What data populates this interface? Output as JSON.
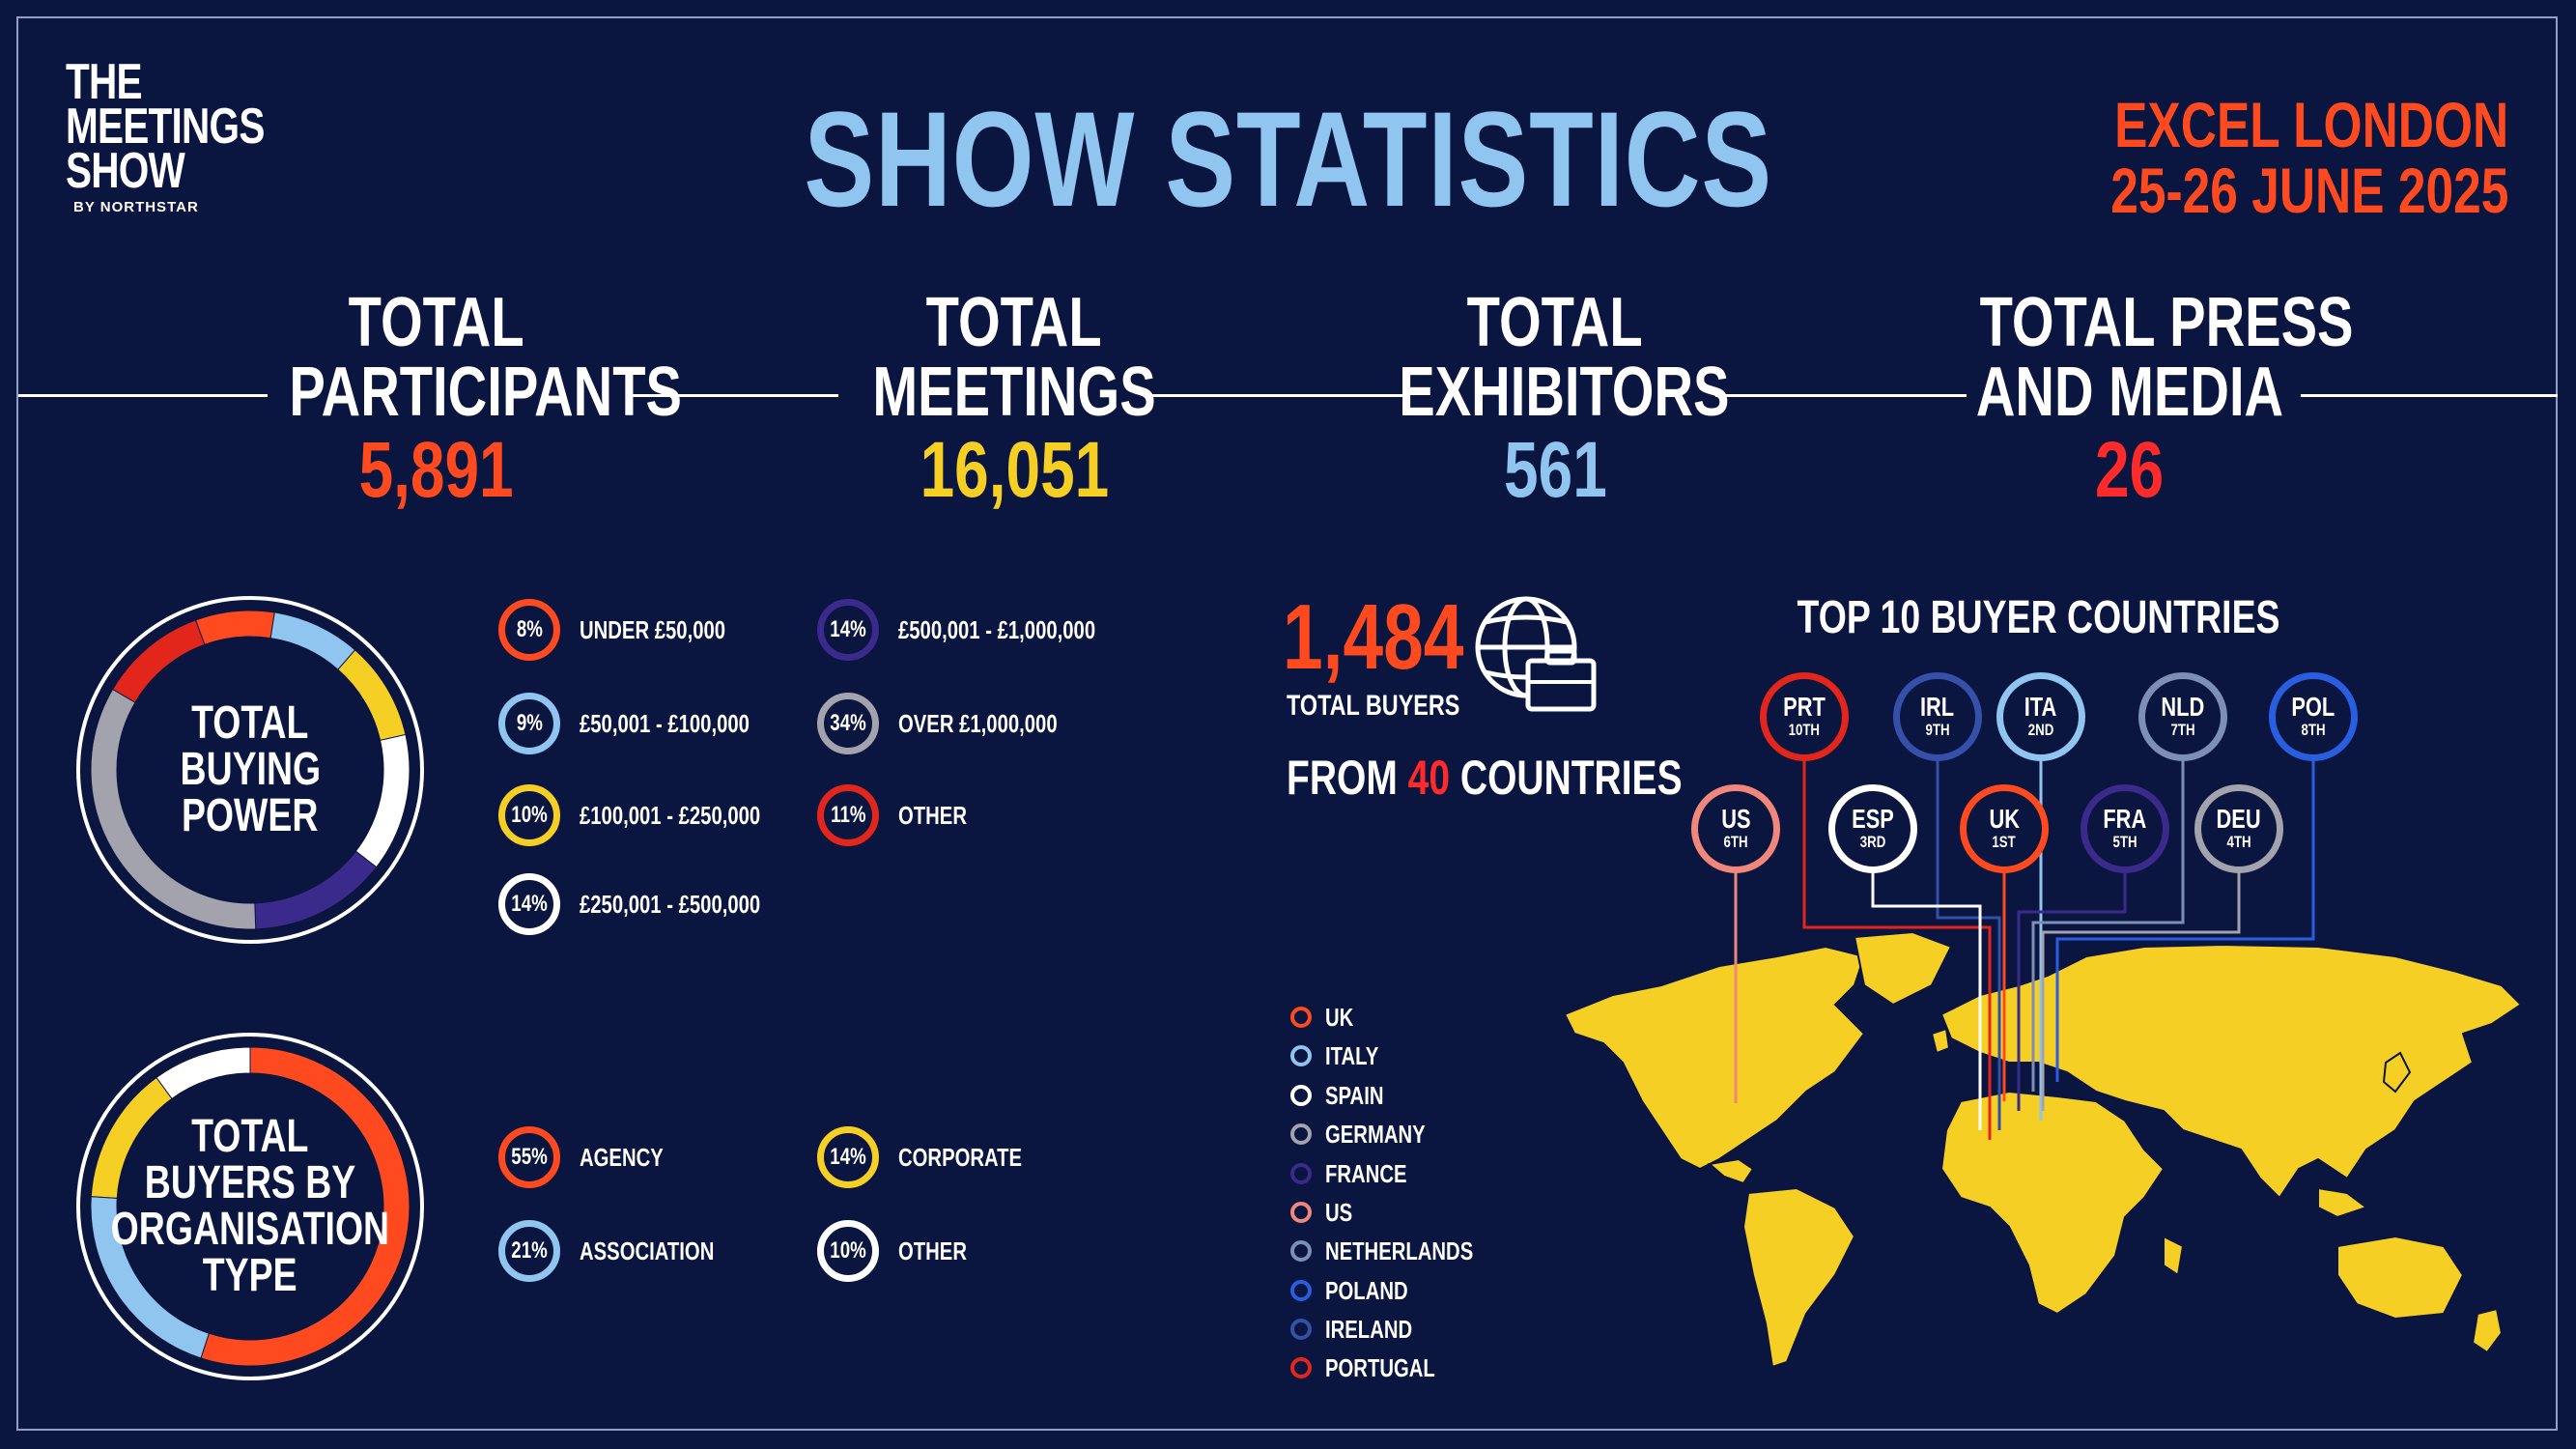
{
  "logo": {
    "line1": "THE",
    "line2": "MEETINGS",
    "line3": "SHOW",
    "byline": "BY NORTHSTAR"
  },
  "title": "SHOW STATISTICS",
  "venue": {
    "line1": "EXCEL LONDON",
    "line2": "25-26 JUNE 2025"
  },
  "stats": [
    {
      "label1": "TOTAL",
      "label2": "PARTICIPANTS",
      "value": "5,891",
      "color": "#ff4a1f"
    },
    {
      "label1": "TOTAL",
      "label2": "MEETINGS",
      "value": "16,051",
      "color": "#f6cf25"
    },
    {
      "label1": "TOTAL",
      "label2": "EXHIBITORS",
      "value": "561",
      "color": "#8fc5ef"
    },
    {
      "label1": "TOTAL PRESS",
      "label2": "AND MEDIA",
      "value": "26",
      "color": "#ff2a2a"
    }
  ],
  "chart_data": [
    {
      "type": "pie",
      "title": "TOTAL BUYING POWER",
      "title_lines": [
        "TOTAL",
        "BUYING",
        "POWER"
      ],
      "slices": [
        {
          "label": "UNDER £50,000",
          "value": 8,
          "display": "8%",
          "color": "#ff4a1f"
        },
        {
          "label": "£50,001 - £100,000",
          "value": 9,
          "display": "9%",
          "color": "#8fc5ef"
        },
        {
          "label": "£100,001 - £250,000",
          "value": 10,
          "display": "10%",
          "color": "#f6cf25"
        },
        {
          "label": "£250,001 - £500,000",
          "value": 14,
          "display": "14%",
          "color": "#ffffff"
        },
        {
          "label": "£500,001 - £1,000,000",
          "value": 14,
          "display": "14%",
          "color": "#3a2a8c"
        },
        {
          "label": "OVER £1,000,000",
          "value": 34,
          "display": "34%",
          "color": "#a3a3ad"
        },
        {
          "label": "OTHER",
          "value": 11,
          "display": "11%",
          "color": "#e3261c"
        }
      ]
    },
    {
      "type": "pie",
      "title": "TOTAL BUYERS BY ORGANISATION TYPE",
      "title_lines": [
        "TOTAL",
        "BUYERS BY",
        "ORGANISATION",
        "TYPE"
      ],
      "slices": [
        {
          "label": "AGENCY",
          "value": 55,
          "display": "55%",
          "color": "#ff4a1f"
        },
        {
          "label": "ASSOCIATION",
          "value": 21,
          "display": "21%",
          "color": "#8fc5ef"
        },
        {
          "label": "CORPORATE",
          "value": 14,
          "display": "14%",
          "color": "#f6cf25"
        },
        {
          "label": "OTHER",
          "value": 10,
          "display": "10%",
          "color": "#ffffff"
        }
      ]
    }
  ],
  "buyers": {
    "number": "1,484",
    "label": "TOTAL BUYERS",
    "from_prefix": "FROM",
    "countries_count": "40",
    "from_suffix": "COUNTRIES"
  },
  "map": {
    "title": "TOP 10 BUYER COUNTRIES",
    "legend": [
      {
        "name": "UK",
        "color": "#ff4a1f"
      },
      {
        "name": "ITALY",
        "color": "#8fc5ef"
      },
      {
        "name": "SPAIN",
        "color": "#ffffff"
      },
      {
        "name": "GERMANY",
        "color": "#a3a3ad"
      },
      {
        "name": "FRANCE",
        "color": "#3a2a8c"
      },
      {
        "name": "US",
        "color": "#f0877a"
      },
      {
        "name": "NETHERLANDS",
        "color": "#7d8fb5"
      },
      {
        "name": "POLAND",
        "color": "#2a5ee0"
      },
      {
        "name": "IRELAND",
        "color": "#3550a8"
      },
      {
        "name": "PORTUGAL",
        "color": "#e3261c"
      }
    ],
    "countries": [
      {
        "code": "PRT",
        "rank": "10TH",
        "color": "#e3261c"
      },
      {
        "code": "IRL",
        "rank": "9TH",
        "color": "#3550a8"
      },
      {
        "code": "ITA",
        "rank": "2ND",
        "color": "#8fc5ef"
      },
      {
        "code": "NLD",
        "rank": "7TH",
        "color": "#7d8fb5"
      },
      {
        "code": "POL",
        "rank": "8TH",
        "color": "#2a5ee0"
      },
      {
        "code": "US",
        "rank": "6TH",
        "color": "#f0877a"
      },
      {
        "code": "ESP",
        "rank": "3RD",
        "color": "#ffffff"
      },
      {
        "code": "UK",
        "rank": "1ST",
        "color": "#ff4a1f"
      },
      {
        "code": "FRA",
        "rank": "5TH",
        "color": "#3a2a8c"
      },
      {
        "code": "DEU",
        "rank": "4TH",
        "color": "#a3a3ad"
      }
    ]
  },
  "colors": {
    "background": "#0a1540",
    "map_land": "#f6cf25"
  }
}
